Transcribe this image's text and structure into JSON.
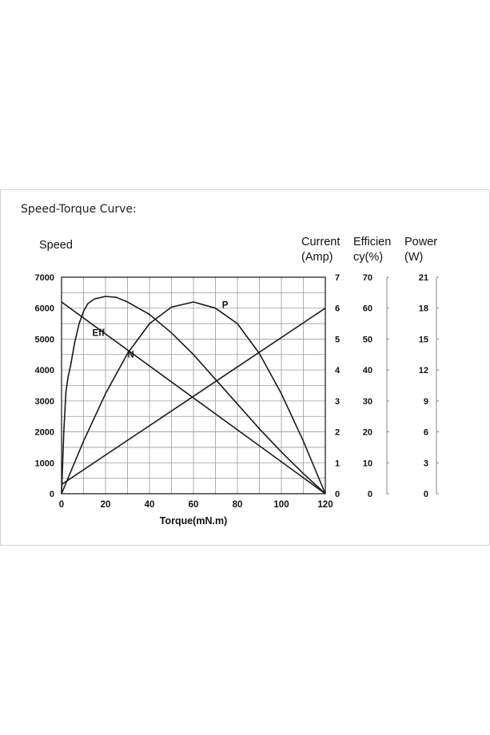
{
  "caption": "Speed-Torque Curve:",
  "chart_data": {
    "type": "line",
    "xlabel": "Torque(mN.m)",
    "xlim": [
      0,
      120
    ],
    "x_ticks": [
      "0",
      "20",
      "40",
      "60",
      "80",
      "100",
      "120"
    ],
    "grid": true,
    "axes": [
      {
        "key": "speed",
        "label": "Speed",
        "label_lines": [
          "Speed"
        ],
        "ylim": [
          0,
          7000
        ],
        "ticks": [
          "0",
          "1000",
          "2000",
          "3000",
          "4000",
          "5000",
          "6000",
          "7000"
        ]
      },
      {
        "key": "current",
        "label": "Current (Amp)",
        "label_lines": [
          "Current",
          "(Amp)"
        ],
        "ylim": [
          0,
          7
        ],
        "ticks": [
          "0",
          "1",
          "2",
          "3",
          "4",
          "5",
          "6",
          "7"
        ]
      },
      {
        "key": "efficiency",
        "label": "Efficiency(%)",
        "label_lines": [
          "Efficien",
          "cy(%)"
        ],
        "ylim": [
          0,
          70
        ],
        "ticks": [
          "0",
          "10",
          "20",
          "30",
          "40",
          "50",
          "60",
          "70"
        ]
      },
      {
        "key": "power",
        "label": "Power (W)",
        "label_lines": [
          "Power",
          "(W)"
        ],
        "ylim": [
          0,
          21
        ],
        "ticks": [
          "0",
          "3",
          "6",
          "9",
          "12",
          "15",
          "18",
          "21"
        ]
      }
    ],
    "series": [
      {
        "name": "N",
        "axis": "speed",
        "x": [
          0,
          120
        ],
        "y": [
          6200,
          0
        ]
      },
      {
        "name": "",
        "axis": "current",
        "x": [
          0,
          120
        ],
        "y": [
          0.3,
          6.0
        ]
      },
      {
        "name": "Eff",
        "axis": "efficiency",
        "x": [
          0,
          1,
          2,
          3,
          4,
          6,
          8,
          10,
          12,
          15,
          20,
          25,
          30,
          40,
          50,
          60,
          70,
          80,
          90,
          100,
          110,
          120
        ],
        "y": [
          0,
          20,
          33,
          38,
          41,
          49,
          55,
          59,
          61.5,
          63,
          63.8,
          63.5,
          62,
          58,
          52,
          45,
          37,
          29,
          21,
          13.5,
          6.5,
          0
        ]
      },
      {
        "name": "P",
        "axis": "power",
        "x": [
          0,
          10,
          20,
          30,
          40,
          50,
          60,
          70,
          80,
          90,
          100,
          110,
          120
        ],
        "y": [
          0,
          5.1,
          9.7,
          13.6,
          16.5,
          18.1,
          18.6,
          18.0,
          16.5,
          13.6,
          9.7,
          5.1,
          0
        ]
      }
    ],
    "annotations": [
      {
        "text": "P",
        "series": "P",
        "x": 73,
        "y_value": 18.0
      },
      {
        "text": "Eff",
        "series": "Eff",
        "x": 14,
        "y_value": 51
      },
      {
        "text": "N",
        "series": "N",
        "x": 30,
        "y_value": 4400
      }
    ]
  }
}
